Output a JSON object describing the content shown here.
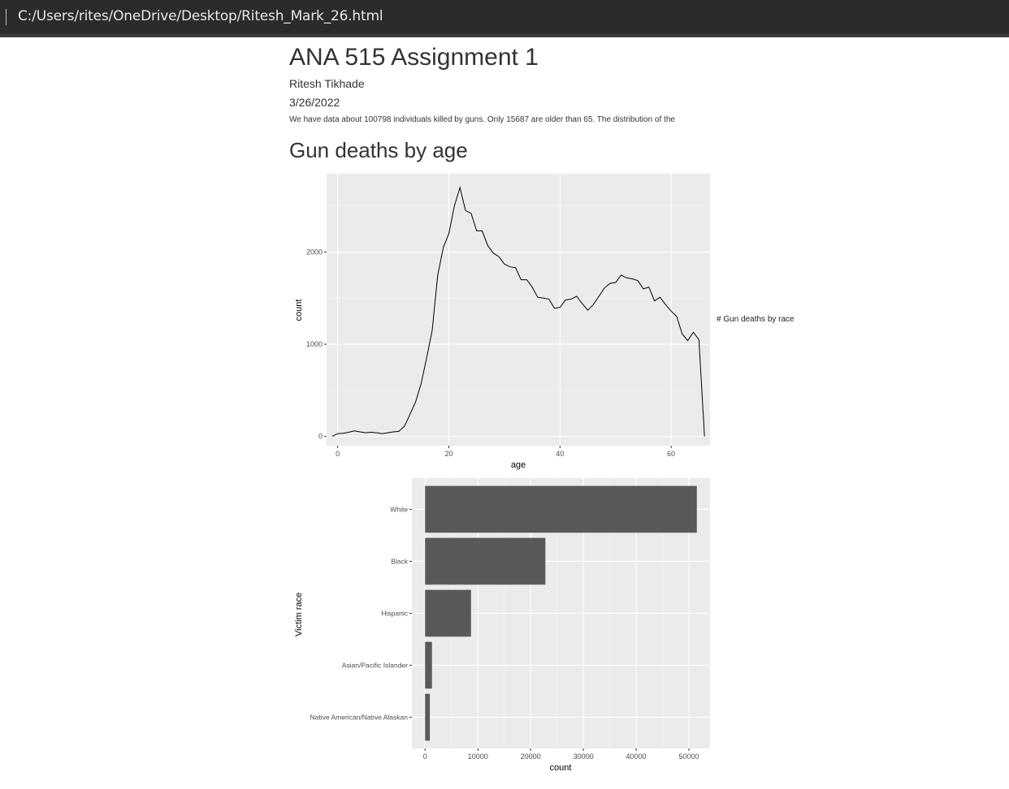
{
  "window": {
    "path": "C:/Users/rites/OneDrive/Desktop/Ritesh_Mark_26.html"
  },
  "document": {
    "title": "ANA 515 Assignment 1",
    "author": "Ritesh Tikhade",
    "date": "3/26/2022",
    "intro": "We have data about 100798 individuals killed by guns. Only 15687 are older than 65. The distribution of the",
    "section_heading": "Gun deaths by age",
    "inline_text": "# Gun deaths by race"
  },
  "chart_data": [
    {
      "type": "line",
      "xlabel": "age",
      "ylabel": "count",
      "xlim": [
        -2,
        67
      ],
      "ylim": [
        -100,
        2850
      ],
      "xticks": [
        0,
        20,
        40,
        60
      ],
      "yticks": [
        0,
        1000,
        2000
      ],
      "grid": true,
      "x": [
        -1,
        0,
        1,
        2,
        3,
        4,
        5,
        6,
        7,
        8,
        9,
        10,
        11,
        12,
        13,
        14,
        15,
        16,
        17,
        18,
        19,
        20,
        21,
        22,
        23,
        24,
        25,
        26,
        27,
        28,
        29,
        30,
        31,
        32,
        33,
        34,
        35,
        36,
        37,
        38,
        39,
        40,
        41,
        42,
        43,
        44,
        45,
        46,
        47,
        48,
        49,
        50,
        51,
        52,
        53,
        54,
        55,
        56,
        57,
        58,
        59,
        60,
        61,
        62,
        63,
        64,
        65,
        66
      ],
      "values": [
        0,
        30,
        35,
        45,
        60,
        50,
        40,
        45,
        40,
        30,
        40,
        50,
        55,
        110,
        240,
        370,
        570,
        850,
        1150,
        1750,
        2050,
        2200,
        2500,
        2700,
        2450,
        2420,
        2230,
        2230,
        2070,
        1990,
        1950,
        1870,
        1840,
        1830,
        1700,
        1700,
        1620,
        1510,
        1500,
        1490,
        1390,
        1400,
        1480,
        1490,
        1520,
        1440,
        1370,
        1430,
        1520,
        1610,
        1660,
        1670,
        1750,
        1720,
        1710,
        1690,
        1600,
        1620,
        1470,
        1510,
        1430,
        1360,
        1300,
        1110,
        1040,
        1130,
        1050,
        0
      ]
    },
    {
      "type": "bar",
      "orientation": "horizontal",
      "xlabel": "count",
      "ylabel": "Victim race",
      "xlim": [
        -2500,
        54000
      ],
      "xticks": [
        0,
        10000,
        20000,
        30000,
        40000,
        50000
      ],
      "grid": true,
      "categories": [
        "White",
        "Black",
        "Hispanic",
        "Asian/Pacific Islander",
        "Native American/Native Alaskan"
      ],
      "values": [
        51500,
        22800,
        8700,
        1300,
        900
      ]
    }
  ],
  "colors": {
    "panel": "#ebebeb",
    "grid_major": "#ffffff",
    "line": "#000000",
    "bar": "#595959",
    "topbar": "#2b2b2b"
  }
}
